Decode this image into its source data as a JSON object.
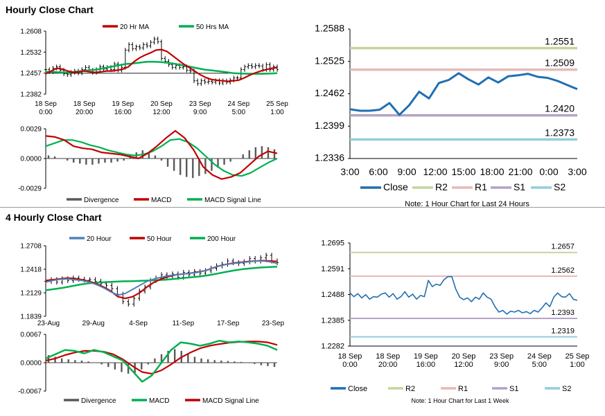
{
  "sections": {
    "hourly_title": "Hourly Close Chart",
    "four_hourly_title": "4 Hourly Close Chart"
  },
  "colors": {
    "red": "#c00000",
    "green": "#00b050",
    "blue": "#4f81bd",
    "darkblue": "#1f6fb2",
    "r2": "#c3d69b",
    "r1": "#e6b9b8",
    "s1": "#b3a2c7",
    "s2": "#93cddd",
    "bar": "#595959"
  },
  "chart_data": [
    {
      "id": "hourly-price",
      "type": "line",
      "legend": [
        "20 Hr MA",
        "50 Hrs MA"
      ],
      "yticks": [
        "1.2608",
        "1.2532",
        "1.2457",
        "1.2382"
      ],
      "ylim": [
        1.2382,
        1.2608
      ],
      "xticks": [
        [
          "18 Sep",
          "0:00"
        ],
        [
          "18 Sep",
          "20:00"
        ],
        [
          "19 Sep",
          "16:00"
        ],
        [
          "20 Sep",
          "12:00"
        ],
        [
          "23 Sep",
          "9:00"
        ],
        [
          "24 Sep",
          "5:00"
        ],
        [
          "25 Sep",
          "1:00"
        ]
      ],
      "ref_line": 1.2457,
      "series": {
        "price": [
          1.247,
          1.2462,
          1.2475,
          1.248,
          1.2468,
          1.2455,
          1.2452,
          1.246,
          1.2465,
          1.2458,
          1.247,
          1.2478,
          1.2468,
          1.246,
          1.247,
          1.248,
          1.2472,
          1.2478,
          1.247,
          1.249,
          1.2468,
          1.2478,
          1.254,
          1.256,
          1.2545,
          1.2552,
          1.2548,
          1.256,
          1.2555,
          1.2568,
          1.258,
          1.257,
          1.251,
          1.25,
          1.2488,
          1.2478,
          1.2485,
          1.2478,
          1.248,
          1.2468,
          1.2465,
          1.243,
          1.242,
          1.243,
          1.2425,
          1.2428,
          1.2425,
          1.243,
          1.2422,
          1.243,
          1.2425,
          1.2432,
          1.244,
          1.244,
          1.247,
          1.248,
          1.2485,
          1.248,
          1.2485,
          1.2483,
          1.247,
          1.2488,
          1.247,
          1.248,
          1.247
        ],
        "ma20": [
          1.2455,
          1.2465,
          1.2475,
          1.2472,
          1.2465,
          1.246,
          1.2462,
          1.2465,
          1.2462,
          1.246,
          1.2462,
          1.2465,
          1.2465,
          1.2468,
          1.2472,
          1.248,
          1.2498,
          1.2512,
          1.2522,
          1.253,
          1.254,
          1.2542,
          1.2535,
          1.252,
          1.2505,
          1.249,
          1.2478,
          1.2465,
          1.2452,
          1.2442,
          1.2435,
          1.2432,
          1.243,
          1.2428,
          1.243,
          1.2432,
          1.244,
          1.245,
          1.2458,
          1.2465,
          1.247,
          1.2475,
          1.2477
        ],
        "ma50": [
          1.2462,
          1.2462,
          1.246,
          1.246,
          1.2462,
          1.2465,
          1.2468,
          1.247,
          1.2475,
          1.248,
          1.2485,
          1.249,
          1.2492,
          1.2495,
          1.2498,
          1.2498,
          1.2497,
          1.2494,
          1.249,
          1.2485,
          1.248,
          1.2475,
          1.247,
          1.2467,
          1.2464,
          1.2461,
          1.2457,
          1.2456,
          1.2455,
          1.2455,
          1.2455,
          1.2456,
          1.2457
        ]
      }
    },
    {
      "id": "hourly-macd",
      "type": "line",
      "legend": [
        "Divergence",
        "MACD",
        "MACD Signal Line"
      ],
      "yticks": [
        "0.0029",
        "0.0000",
        "-0.0029"
      ],
      "ylim": [
        -0.0029,
        0.0029
      ],
      "series": {
        "divergence": [
          0.0003,
          0.0002,
          0.0,
          -0.0002,
          -0.0004,
          -0.0005,
          -0.0006,
          -0.0006,
          -0.0005,
          -0.0004,
          -0.0004,
          -0.0003,
          -0.0002,
          0.0003,
          0.0006,
          0.0008,
          0.0006,
          0.0003,
          -0.0002,
          -0.0008,
          -0.0012,
          -0.0016,
          -0.0018,
          -0.0019,
          -0.0017,
          -0.0015,
          -0.0012,
          -0.0009,
          -0.0006,
          -0.0003,
          0.0,
          0.0004,
          0.0008,
          0.0011,
          0.0012,
          0.0011,
          0.0009
        ],
        "macd": [
          0.0022,
          0.0021,
          0.0018,
          0.0012,
          0.001,
          0.0009,
          0.0006,
          0.0005,
          0.0004,
          0.0002,
          0.0,
          0.0005,
          0.0012,
          0.002,
          0.0027,
          0.002,
          0.0008,
          -0.0008,
          -0.0016,
          -0.002,
          -0.0018,
          -0.0014,
          -0.0006,
          0.0002,
          0.0007,
          0.0005
        ],
        "signal": [
          0.0012,
          0.0015,
          0.0018,
          0.0018,
          0.0016,
          0.0013,
          0.0011,
          0.0008,
          0.0006,
          0.0004,
          0.0003,
          0.0004,
          0.0007,
          0.0012,
          0.0018,
          0.0019,
          0.0016,
          0.001,
          0.0002,
          -0.0006,
          -0.0012,
          -0.0016,
          -0.0017,
          -0.0014,
          -0.0009,
          -0.0004,
          0.0
        ]
      }
    },
    {
      "id": "hourly-pivot",
      "type": "line",
      "yticks": [
        "1.2588",
        "1.2525",
        "1.2462",
        "1.2399",
        "1.2336"
      ],
      "ylim": [
        1.2336,
        1.2588
      ],
      "xticks": [
        "3:00",
        "6:00",
        "9:00",
        "12:00",
        "15:00",
        "18:00",
        "21:00",
        "0:00",
        "3:00"
      ],
      "levels": {
        "R2": 1.2551,
        "R1": 1.2509,
        "S1": 1.242,
        "S2": 1.2373
      },
      "level_labels": {
        "R2": "1.2551",
        "R1": "1.2509",
        "S1": "1.2420",
        "S2": "1.2373"
      },
      "close": [
        1.2432,
        1.2429,
        1.2429,
        1.2431,
        1.2444,
        1.2421,
        1.244,
        1.2466,
        1.2453,
        1.2483,
        1.2489,
        1.2502,
        1.249,
        1.248,
        1.2494,
        1.2484,
        1.2496,
        1.2498,
        1.2501,
        1.2495,
        1.2493,
        1.2487,
        1.2479,
        1.2471
      ],
      "legend": [
        "Close",
        "R2",
        "R1",
        "S1",
        "S2"
      ],
      "note": "Note: 1 Hour Chart for Last 24 Hours"
    },
    {
      "id": "four-hourly-price",
      "type": "line",
      "legend": [
        "20 Hour",
        "50 Hour",
        "200 Hour"
      ],
      "yticks": [
        "1.2708",
        "1.2418",
        "1.2129",
        "1.1839"
      ],
      "ylim": [
        1.1839,
        1.2708
      ],
      "xticks": [
        "23-Aug",
        "29-Aug",
        "4-Sep",
        "11-Sep",
        "17-Sep",
        "23-Sep"
      ],
      "series": {
        "price": [
          1.227,
          1.229,
          1.226,
          1.23,
          1.228,
          1.231,
          1.2295,
          1.2285,
          1.229,
          1.227,
          1.224,
          1.222,
          1.218,
          1.211,
          1.202,
          1.199,
          1.206,
          1.215,
          1.22,
          1.228,
          1.231,
          1.235,
          1.233,
          1.236,
          1.232,
          1.238,
          1.235,
          1.239,
          1.237,
          1.24,
          1.243,
          1.246,
          1.248,
          1.252,
          1.25,
          1.249,
          1.251,
          1.255,
          1.252,
          1.256,
          1.259,
          1.252,
          1.25
        ],
        "sma20": [
          1.226,
          1.228,
          1.2295,
          1.23,
          1.229,
          1.228,
          1.226,
          1.223,
          1.219,
          1.214,
          1.21,
          1.212,
          1.217,
          1.222,
          1.227,
          1.23,
          1.232,
          1.234,
          1.235,
          1.236,
          1.237,
          1.238,
          1.24,
          1.243,
          1.246,
          1.248,
          1.249,
          1.25,
          1.251,
          1.252,
          1.252,
          1.251,
          1.249
        ],
        "sma50": [
          1.228,
          1.229,
          1.23,
          1.231,
          1.2305,
          1.229,
          1.227,
          1.224,
          1.22,
          1.215,
          1.208,
          1.206,
          1.208,
          1.213,
          1.22,
          1.226,
          1.23,
          1.233,
          1.235,
          1.236,
          1.237,
          1.2385,
          1.24,
          1.243,
          1.246,
          1.248,
          1.2495,
          1.2505,
          1.2515,
          1.252,
          1.2525,
          1.252,
          1.2515
        ],
        "sma200": [
          1.216,
          1.2175,
          1.219,
          1.221,
          1.223,
          1.2245,
          1.2255,
          1.226,
          1.2265,
          1.227,
          1.2272,
          1.2275,
          1.228,
          1.2285,
          1.229,
          1.23,
          1.231,
          1.232,
          1.233,
          1.2345,
          1.2365,
          1.2385,
          1.2405,
          1.242,
          1.243,
          1.244,
          1.2445,
          1.245
        ]
      }
    },
    {
      "id": "four-hourly-macd",
      "type": "line",
      "legend": [
        "Divergence",
        "MACD",
        "MACD Signal Line"
      ],
      "yticks": [
        "0.0067",
        "0.0000",
        "-0.0067"
      ],
      "ylim": [
        -0.0067,
        0.0067
      ],
      "series": {
        "divergence": [
          0.0018,
          0.0014,
          0.001,
          0.0008,
          0.0006,
          0.0005,
          0.0003,
          0.0,
          -0.0004,
          -0.001,
          -0.0016,
          -0.0022,
          -0.0026,
          -0.0024,
          -0.0016,
          -0.0004,
          0.001,
          0.002,
          0.0028,
          0.0032,
          0.0028,
          0.002,
          0.0014,
          0.001,
          0.0008,
          0.0006,
          0.0005,
          0.0004,
          0.0003,
          0.0002,
          0.0,
          -0.0003,
          -0.0006,
          -0.0008,
          -0.001
        ],
        "macd": [
          0.001,
          0.002,
          0.003,
          0.0028,
          0.0022,
          0.003,
          0.0025,
          0.0015,
          0.0005,
          -0.002,
          -0.0045,
          -0.003,
          0.0,
          0.003,
          0.0048,
          0.0045,
          0.004,
          0.0045,
          0.0052,
          0.0048,
          0.005,
          0.0048,
          0.0045,
          0.004,
          0.003
        ],
        "signal": [
          0.0005,
          0.001,
          0.0018,
          0.0024,
          0.0028,
          0.0028,
          0.0026,
          0.002,
          0.0008,
          -0.0008,
          -0.0022,
          -0.0026,
          -0.0018,
          -0.0004,
          0.0012,
          0.0024,
          0.0034,
          0.004,
          0.0044,
          0.0047,
          0.0049,
          0.005,
          0.005,
          0.0048,
          0.0042
        ]
      }
    },
    {
      "id": "weekly-pivot",
      "type": "line",
      "yticks": [
        "1.2695",
        "1.2591",
        "1.2488",
        "1.2385",
        "1.2282"
      ],
      "ylim": [
        1.2282,
        1.2695
      ],
      "xticks": [
        [
          "18 Sep",
          "0:00"
        ],
        [
          "18 Sep",
          "20:00"
        ],
        [
          "19 Sep",
          "16:00"
        ],
        [
          "20 Sep",
          "12:00"
        ],
        [
          "23 Sep",
          "9:00"
        ],
        [
          "24 Sep",
          "5:00"
        ],
        [
          "25 Sep",
          "1:00"
        ]
      ],
      "levels": {
        "R2": 1.2657,
        "R1": 1.2562,
        "S1": 1.2393,
        "S2": 1.2319
      },
      "level_labels": {
        "R2": "1.2657",
        "R1": "1.2562",
        "S1": "1.2393",
        "S2": "1.2319"
      },
      "close": [
        1.2495,
        1.248,
        1.2492,
        1.2475,
        1.2488,
        1.247,
        1.248,
        1.2478,
        1.249,
        1.2495,
        1.2478,
        1.2492,
        1.247,
        1.248,
        1.25,
        1.2478,
        1.249,
        1.247,
        1.2485,
        1.248,
        1.2545,
        1.252,
        1.253,
        1.2525,
        1.2548,
        1.256,
        1.256,
        1.251,
        1.2478,
        1.2468,
        1.2475,
        1.246,
        1.2478,
        1.247,
        1.2495,
        1.2478,
        1.247,
        1.244,
        1.2418,
        1.2425,
        1.241,
        1.2422,
        1.2418,
        1.2425,
        1.2415,
        1.242,
        1.2412,
        1.2425,
        1.2418,
        1.2435,
        1.2455,
        1.244,
        1.2478,
        1.2495,
        1.248,
        1.2478,
        1.2492,
        1.247,
        1.2465
      ],
      "legend": [
        "Close",
        "R2",
        "R1",
        "S1",
        "S2"
      ],
      "note": "Note: 1 Hour Chart for Last 1 Week"
    }
  ]
}
